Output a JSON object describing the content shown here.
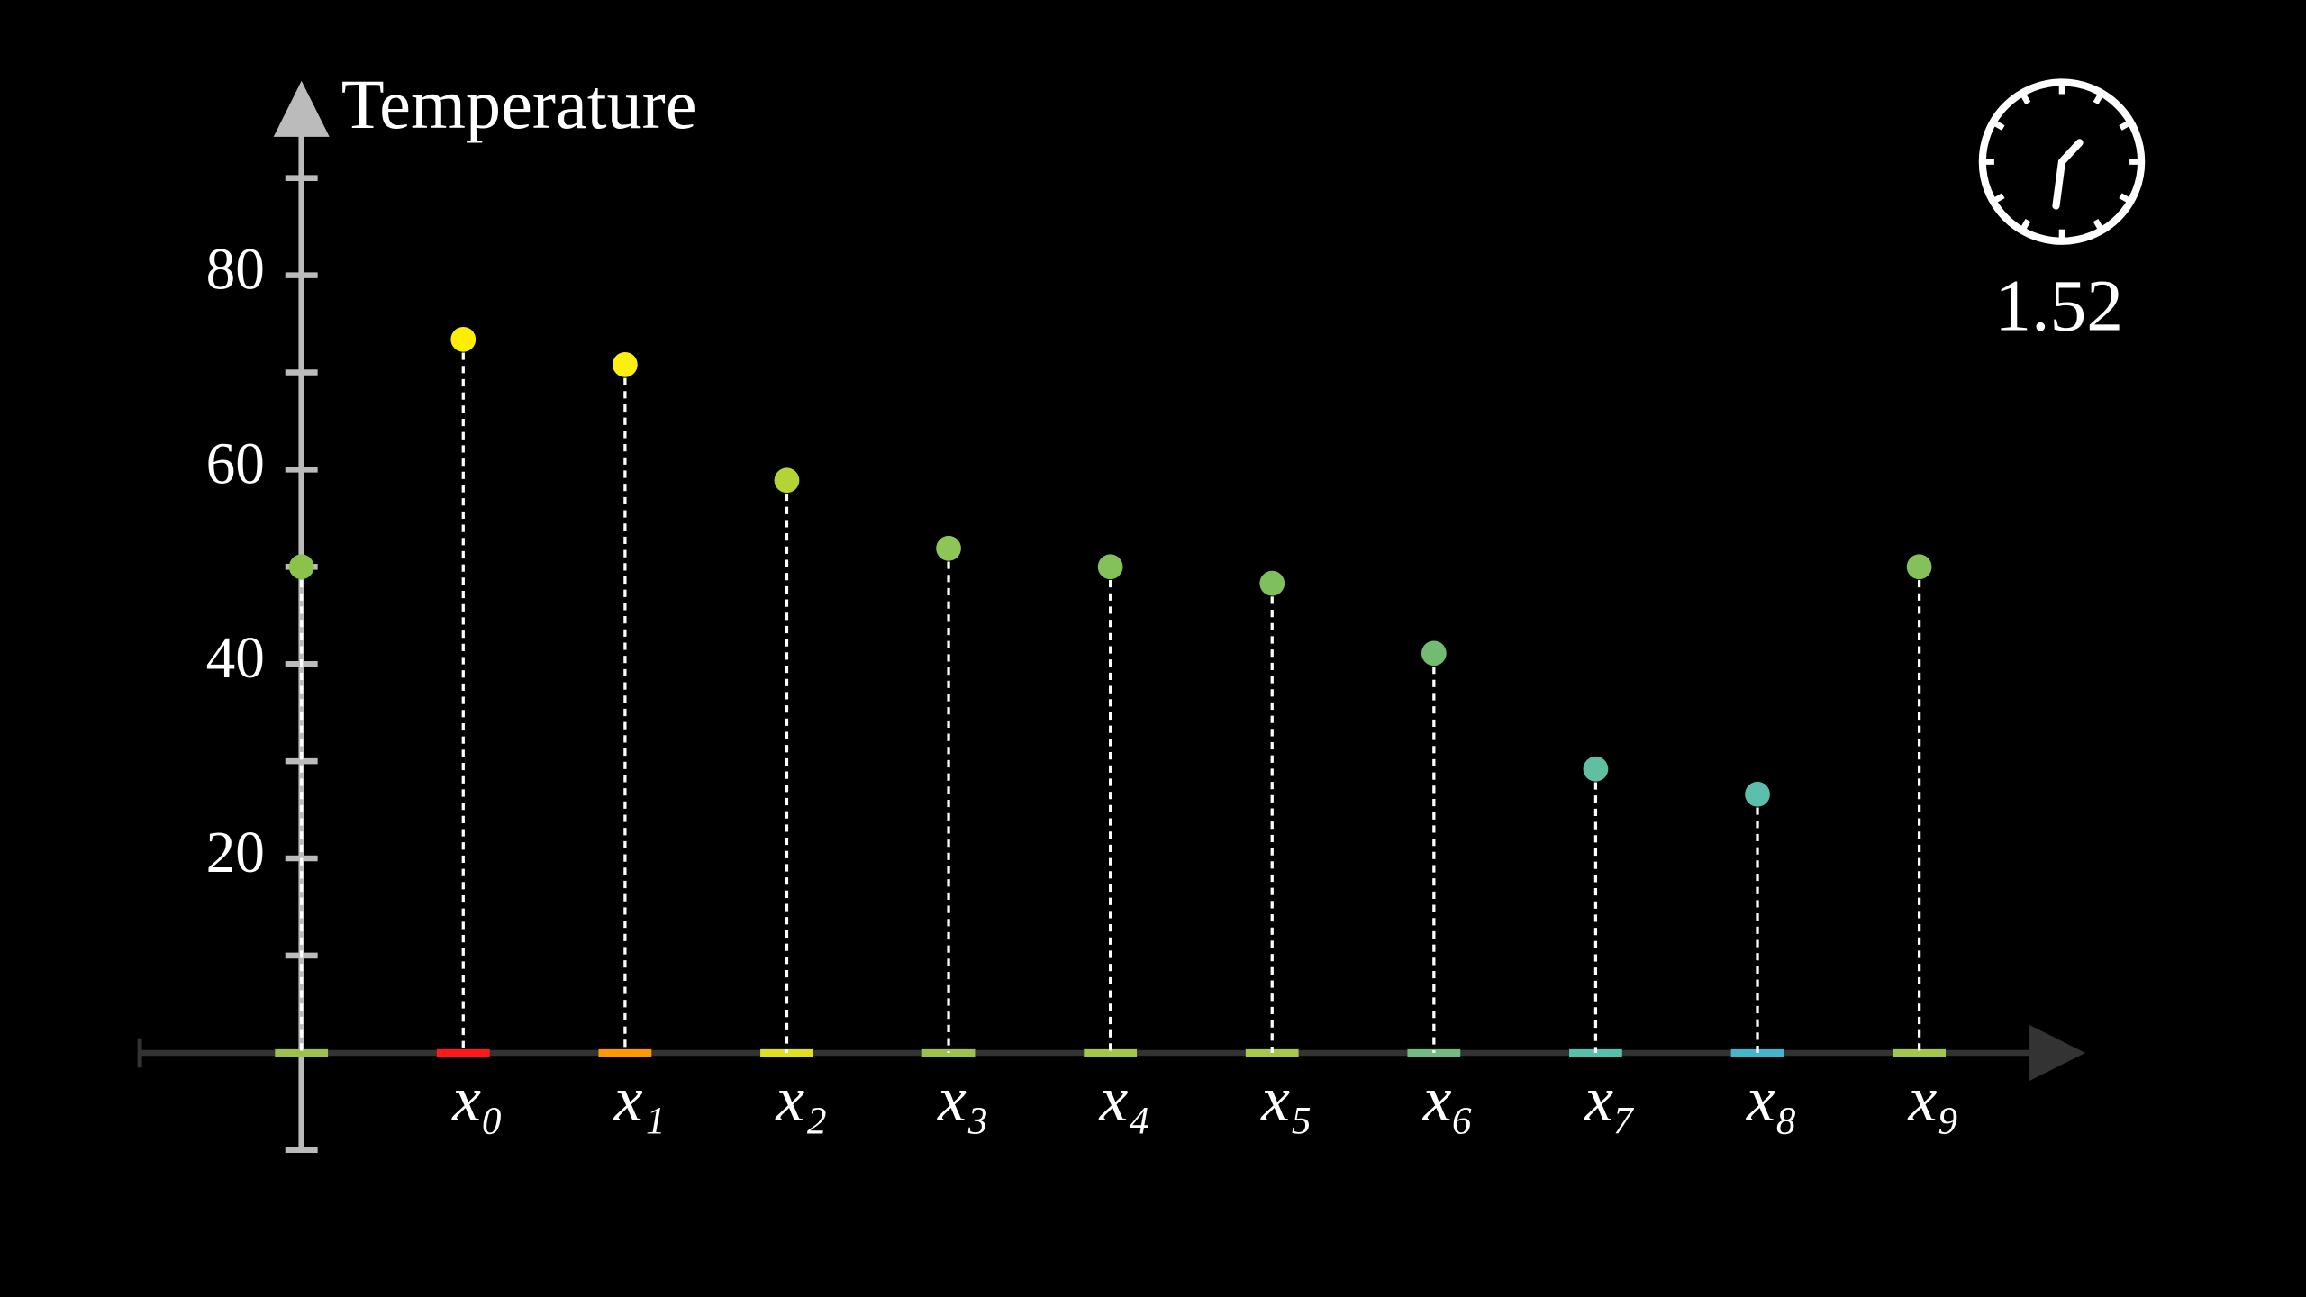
{
  "chart_data": {
    "type": "stem",
    "y_label": "Temperature",
    "time": "1.52",
    "categories": [
      null,
      "x₀",
      "x₁",
      "x₂",
      "x₃",
      "x₄",
      "x₅",
      "x₆",
      "x₇",
      "x₈",
      "x₉"
    ],
    "values": [
      50,
      73.4,
      70.8,
      58.9,
      51.9,
      50,
      48.3,
      41.1,
      29.2,
      26.6,
      50
    ],
    "colors": [
      "#8bc34a",
      "#ffee00",
      "#fbee10",
      "#b5d335",
      "#8fc456",
      "#85c15a",
      "#80bf5e",
      "#72bb70",
      "#5fbfa0",
      "#5cbfad",
      "#85c15a"
    ],
    "segment_colors": [
      "#9cc04d",
      "#ff1a1a",
      "#ff9900",
      "#e0e020",
      "#9bc24d",
      "#a0c84a",
      "#a8c84a",
      "#72bb80",
      "#55c1aa",
      "#45b5cc",
      "#a0c84a"
    ],
    "ylim": [
      -10,
      100
    ],
    "yticks": [
      20,
      40,
      60,
      80
    ],
    "minor_yticks": [
      -10,
      10,
      30,
      50,
      70,
      90
    ]
  }
}
